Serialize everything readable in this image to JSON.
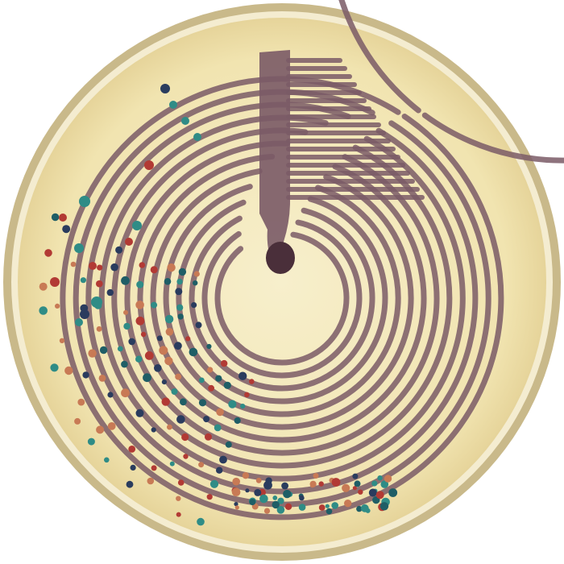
{
  "image": {
    "subject": "petri-dish-streak",
    "colors": {
      "background": "#ffffff",
      "rim": "#c9b98a",
      "rim_highlight": "#f4ecd0",
      "agar": "#f1e4b0",
      "agar_center": "#f7efcc",
      "streak_purple": "#7a5a66",
      "streak_dark": "#4a2f3a",
      "colony_teal": "#2f8c86",
      "colony_teal_dark": "#1f5e66",
      "colony_red": "#b23a34",
      "colony_navy": "#2a3c5e",
      "colony_orange": "#c87a55"
    },
    "colony_types": [
      "teal",
      "red",
      "navy",
      "orange"
    ]
  }
}
